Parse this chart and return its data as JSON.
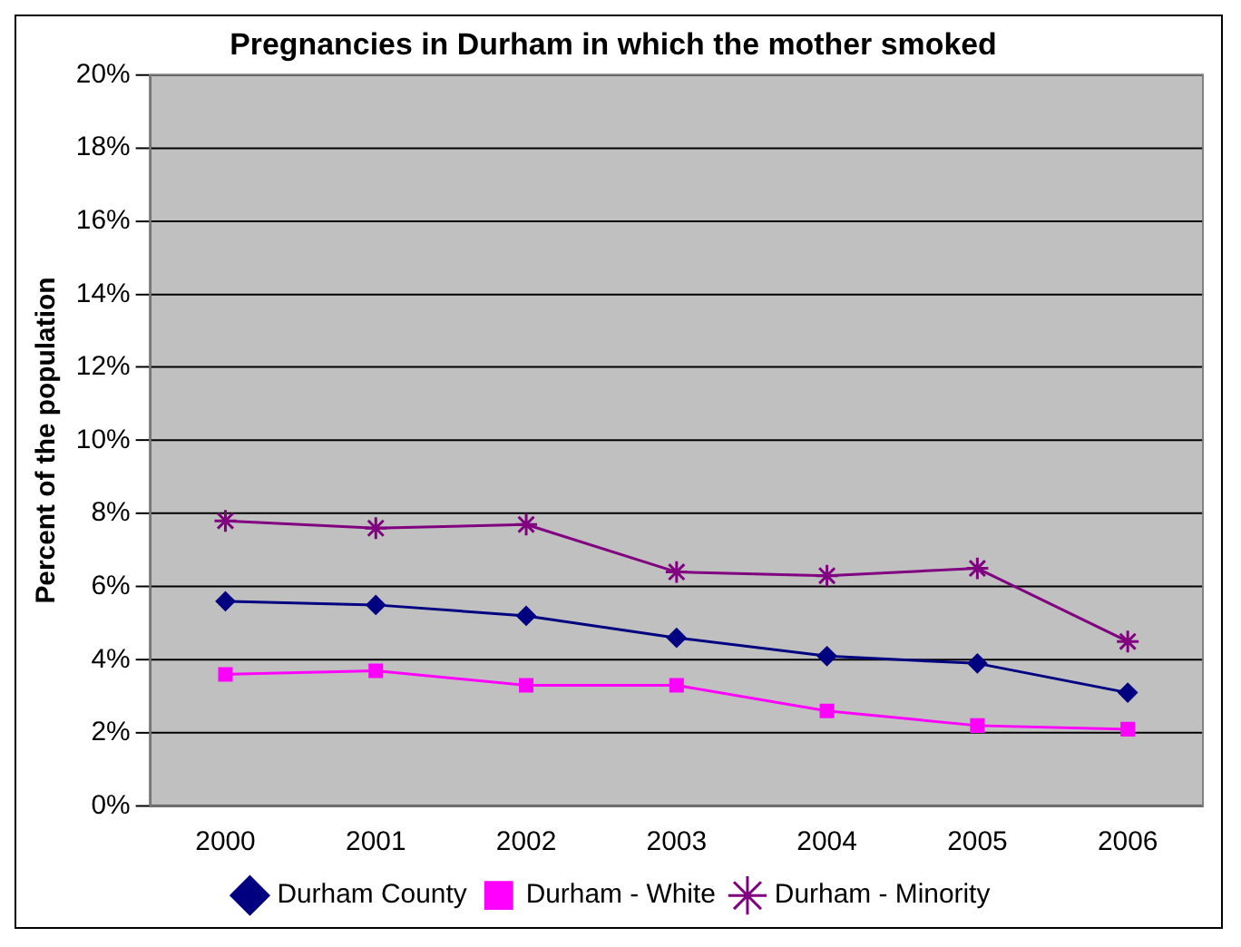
{
  "chart_data": {
    "type": "line",
    "title": "Pregnancies in Durham in which the mother smoked",
    "ylabel": "Percent of the population",
    "categories": [
      "2000",
      "2001",
      "2002",
      "2003",
      "2004",
      "2005",
      "2006"
    ],
    "series": [
      {
        "name": "Durham County",
        "color": "#000080",
        "marker": "diamond",
        "values": [
          5.6,
          5.5,
          5.2,
          4.6,
          4.1,
          3.9,
          3.1
        ]
      },
      {
        "name": "Durham - White",
        "color": "#ff00ff",
        "marker": "square",
        "values": [
          3.6,
          3.7,
          3.3,
          3.3,
          2.6,
          2.2,
          2.1
        ]
      },
      {
        "name": "Durham - Minority",
        "color": "#800080",
        "marker": "cross",
        "values": [
          7.8,
          7.6,
          7.7,
          6.4,
          6.3,
          6.5,
          4.5
        ]
      }
    ],
    "ylim": [
      0,
      20
    ],
    "yticks": [
      {
        "value": 0,
        "label": "0%"
      },
      {
        "value": 2,
        "label": "2%"
      },
      {
        "value": 4,
        "label": "4%"
      },
      {
        "value": 6,
        "label": "6%"
      },
      {
        "value": 8,
        "label": "8%"
      },
      {
        "value": 10,
        "label": "10%"
      },
      {
        "value": 12,
        "label": "12%"
      },
      {
        "value": 14,
        "label": "14%"
      },
      {
        "value": 16,
        "label": "16%"
      },
      {
        "value": 18,
        "label": "18%"
      },
      {
        "value": 20,
        "label": "20%"
      }
    ],
    "grid": "y",
    "legend": "bottom"
  }
}
